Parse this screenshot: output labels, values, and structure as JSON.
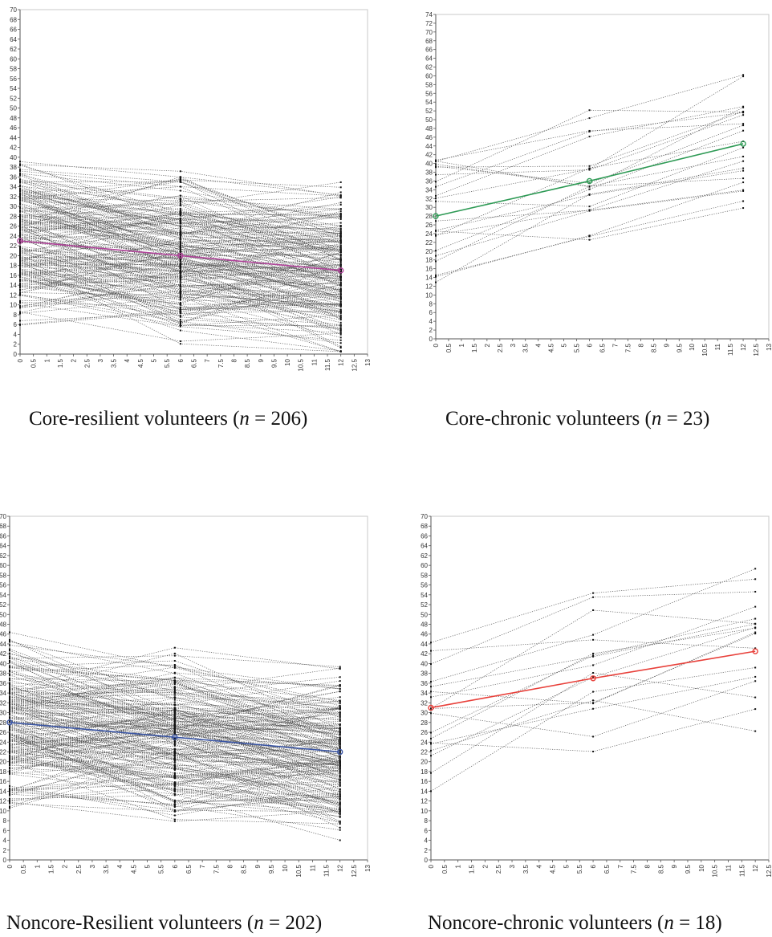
{
  "charts": [
    {
      "caption": {
        "prefix": "Core-resilient volunteers (",
        "n_symbol": "n",
        "suffix": " = 206)"
      },
      "chart_data": {
        "type": "line",
        "xlim": [
          0,
          13
        ],
        "ylim": [
          0,
          70
        ],
        "x_ticks": [
          0,
          0.5,
          1,
          1.5,
          2,
          2.5,
          3,
          3.5,
          4,
          4.5,
          5,
          5.5,
          6,
          6.5,
          7,
          7.5,
          8,
          8.5,
          9,
          9.5,
          10,
          10.5,
          11,
          11.5,
          12,
          12.5,
          13
        ],
        "y_ticks": [
          0,
          2,
          4,
          6,
          8,
          10,
          12,
          14,
          16,
          18,
          20,
          22,
          24,
          26,
          28,
          30,
          32,
          34,
          36,
          38,
          40,
          42,
          44,
          46,
          48,
          50,
          52,
          54,
          56,
          58,
          60,
          62,
          64,
          66,
          68,
          70
        ],
        "timepoints": [
          0,
          6,
          12
        ],
        "n_trajectories": 206,
        "mean_line": {
          "x": [
            0,
            6,
            12
          ],
          "y": [
            23,
            20,
            17
          ],
          "color": "#b0449a"
        },
        "grid": false
      }
    },
    {
      "caption": {
        "prefix": "Core-chronic volunteers (",
        "n_symbol": "n",
        "suffix": " = 23)"
      },
      "chart_data": {
        "type": "line",
        "xlim": [
          0,
          13
        ],
        "ylim": [
          0,
          74
        ],
        "x_ticks": [
          0,
          0.5,
          1,
          1.5,
          2,
          2.5,
          3,
          3.5,
          4,
          4.5,
          5,
          5.5,
          6,
          6.5,
          7,
          7.5,
          8,
          8.5,
          9,
          9.5,
          10,
          10.5,
          11,
          11.5,
          12,
          12.5,
          13
        ],
        "y_ticks": [
          0,
          2,
          4,
          6,
          8,
          10,
          12,
          14,
          16,
          18,
          20,
          22,
          24,
          26,
          28,
          30,
          32,
          34,
          36,
          38,
          40,
          42,
          44,
          46,
          48,
          50,
          52,
          54,
          56,
          58,
          60,
          62,
          64,
          66,
          68,
          70,
          72,
          74
        ],
        "timepoints": [
          0,
          6,
          12
        ],
        "n_trajectories": 23,
        "mean_line": {
          "x": [
            0,
            6,
            12
          ],
          "y": [
            28,
            36,
            44.5
          ],
          "color": "#2e9a55"
        },
        "grid": false
      }
    },
    {
      "caption": {
        "prefix": "Noncore-Resilient volunteers (",
        "n_symbol": "n",
        "suffix": " = 202)"
      },
      "chart_data": {
        "type": "line",
        "xlim": [
          0,
          13
        ],
        "ylim": [
          0,
          70
        ],
        "x_ticks": [
          0,
          0.5,
          1,
          1.5,
          2,
          2.5,
          3,
          3.5,
          4,
          4.5,
          5,
          5.5,
          6,
          6.5,
          7,
          7.5,
          8,
          8.5,
          9,
          9.5,
          10,
          10.5,
          11,
          11.5,
          12,
          12.5,
          13
        ],
        "y_ticks": [
          0,
          2,
          4,
          6,
          8,
          10,
          12,
          14,
          16,
          18,
          20,
          22,
          24,
          26,
          28,
          30,
          32,
          34,
          36,
          38,
          40,
          42,
          44,
          46,
          48,
          50,
          52,
          54,
          56,
          58,
          60,
          62,
          64,
          66,
          68,
          70
        ],
        "timepoints": [
          0,
          6,
          12
        ],
        "n_trajectories": 202,
        "mean_line": {
          "x": [
            0,
            6,
            12
          ],
          "y": [
            28,
            25,
            22
          ],
          "color": "#3a55a4"
        },
        "grid": false
      }
    },
    {
      "caption": {
        "prefix": "Noncore-chronic volunteers (",
        "n_symbol": "n",
        "suffix": " = 18)"
      },
      "chart_data": {
        "type": "line",
        "xlim": [
          0,
          12.5
        ],
        "ylim": [
          0,
          70
        ],
        "x_ticks": [
          0,
          0.5,
          1,
          1.5,
          2,
          2.5,
          3,
          3.5,
          4,
          4.5,
          5,
          5.5,
          6,
          6.5,
          7,
          7.5,
          8,
          8.5,
          9,
          9.5,
          10,
          10.5,
          11,
          11.5,
          12,
          12.5
        ],
        "y_ticks": [
          0,
          2,
          4,
          6,
          8,
          10,
          12,
          14,
          16,
          18,
          20,
          22,
          24,
          26,
          28,
          30,
          32,
          34,
          36,
          38,
          40,
          42,
          44,
          46,
          48,
          50,
          52,
          54,
          56,
          58,
          60,
          62,
          64,
          66,
          68,
          70
        ],
        "timepoints": [
          0,
          6,
          12
        ],
        "n_trajectories": 18,
        "mean_line": {
          "x": [
            0,
            6,
            12
          ],
          "y": [
            31,
            37,
            42.5
          ],
          "color": "#e8403a"
        },
        "grid": false
      }
    }
  ]
}
